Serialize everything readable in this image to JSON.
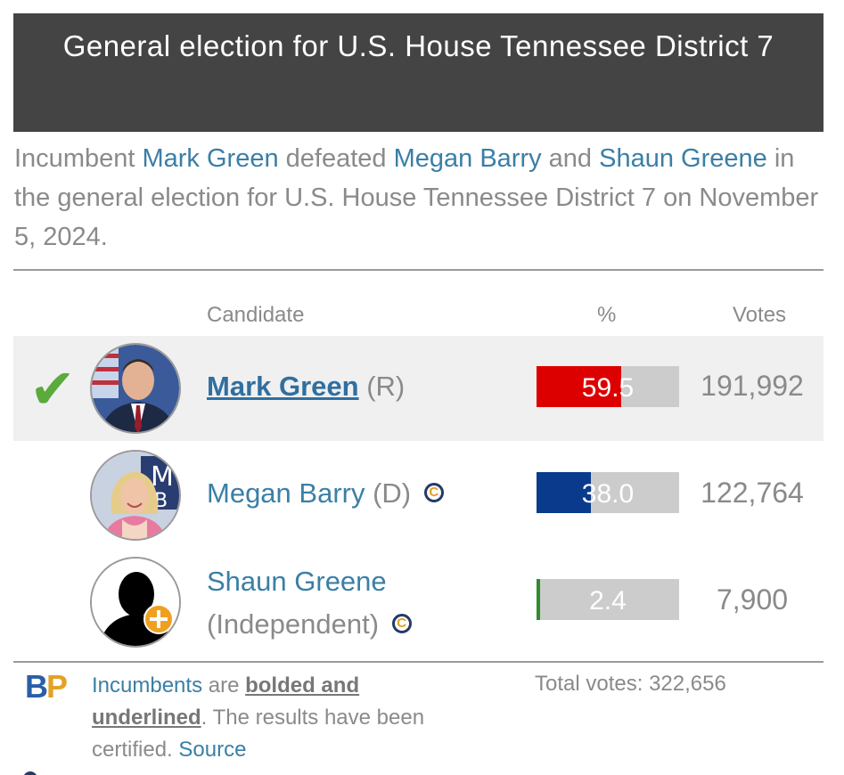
{
  "title": "General election for U.S. House Tennessee District 7",
  "summary": {
    "p1": "Incumbent ",
    "link1": "Mark Green",
    "p2": " defeated ",
    "link2": "Megan Barry",
    "p3": " and ",
    "link3": "Shaun Greene",
    "p4": " in the general election for U.S. House Tennessee District 7 on November 5, 2024."
  },
  "table_headers": {
    "candidate": "Candidate",
    "percent": "%",
    "votes": "Votes"
  },
  "candidates": [
    {
      "name": "Mark Green",
      "party": "(R)",
      "percent": "59.5",
      "percent_value": 59.5,
      "votes": "191,992",
      "winner": true,
      "incumbent": true,
      "bar_color": "#dd0000"
    },
    {
      "name": "Megan Barry",
      "party": "(D)",
      "percent": "38.0",
      "percent_value": 38.0,
      "votes": "122,764",
      "winner": false,
      "incumbent": false,
      "bar_color": "#0a3a8c"
    },
    {
      "name": "Shaun Greene",
      "party": "(Independent)",
      "percent": "2.4",
      "percent_value": 2.4,
      "votes": "7,900",
      "winner": false,
      "incumbent": false,
      "bar_color": "#2e8b2e"
    }
  ],
  "footer": {
    "logo_b": "B",
    "logo_p": "P",
    "incumbents_link": "Incumbents",
    "are": " are ",
    "bolded": "bolded and underlined",
    "certified_text": ". The results have been certified. ",
    "source_link": "Source",
    "total_votes": "Total votes: 322,656"
  },
  "icons": {
    "winner": "check-icon",
    "candidate_connection": "candidate-connection-icon"
  }
}
